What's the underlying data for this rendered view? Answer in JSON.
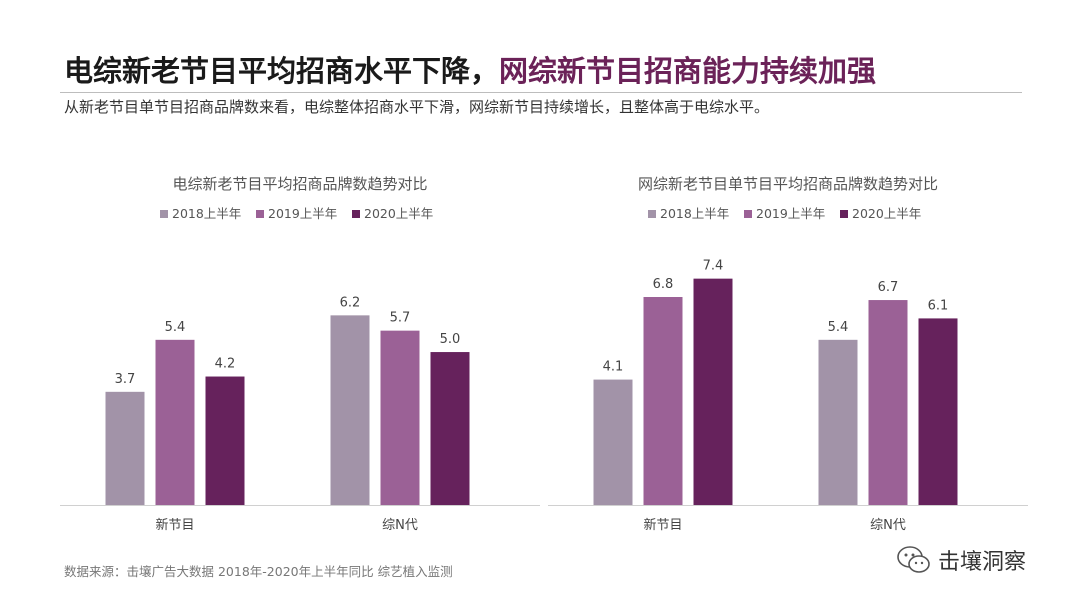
{
  "headline": {
    "part_a": "电综新老节目平均招商水平下降，",
    "part_b": "网综新节目招商能力持续加强"
  },
  "subtitle": "从新老节目单节目招商品牌数来看，电综整体招商水平下滑，网综新节目持续增长，且整体高于电综水平。",
  "source": "数据来源：击壤广告大数据 2018年-2020年上半年同比 综艺植入监测",
  "brand": {
    "name": "击壤洞察",
    "icon": "wechat-icon"
  },
  "colors": {
    "s2018": "#a293a8",
    "s2019": "#9b6196",
    "s2020": "#66225c",
    "title_accent": "#6b2258"
  },
  "chart_data": [
    {
      "type": "bar",
      "title": "电综新老节目平均招商品牌数趋势对比",
      "categories": [
        "新节目",
        "综N代"
      ],
      "series": [
        {
          "name": "2018上半年",
          "values": [
            3.7,
            6.2
          ]
        },
        {
          "name": "2019上半年",
          "values": [
            5.4,
            5.7
          ]
        },
        {
          "name": "2020上半年",
          "values": [
            4.2,
            5.0
          ]
        }
      ],
      "ylim": [
        0,
        8.5
      ],
      "legend": "top",
      "grid": false
    },
    {
      "type": "bar",
      "title": "网综新老节目单节目平均招商品牌数趋势对比",
      "categories": [
        "新节目",
        "综N代"
      ],
      "series": [
        {
          "name": "2018上半年",
          "values": [
            4.1,
            5.4
          ]
        },
        {
          "name": "2019上半年",
          "values": [
            6.8,
            6.7
          ]
        },
        {
          "name": "2020上半年",
          "values": [
            7.4,
            6.1
          ]
        }
      ],
      "ylim": [
        0,
        8.5
      ],
      "legend": "top",
      "grid": false
    }
  ]
}
